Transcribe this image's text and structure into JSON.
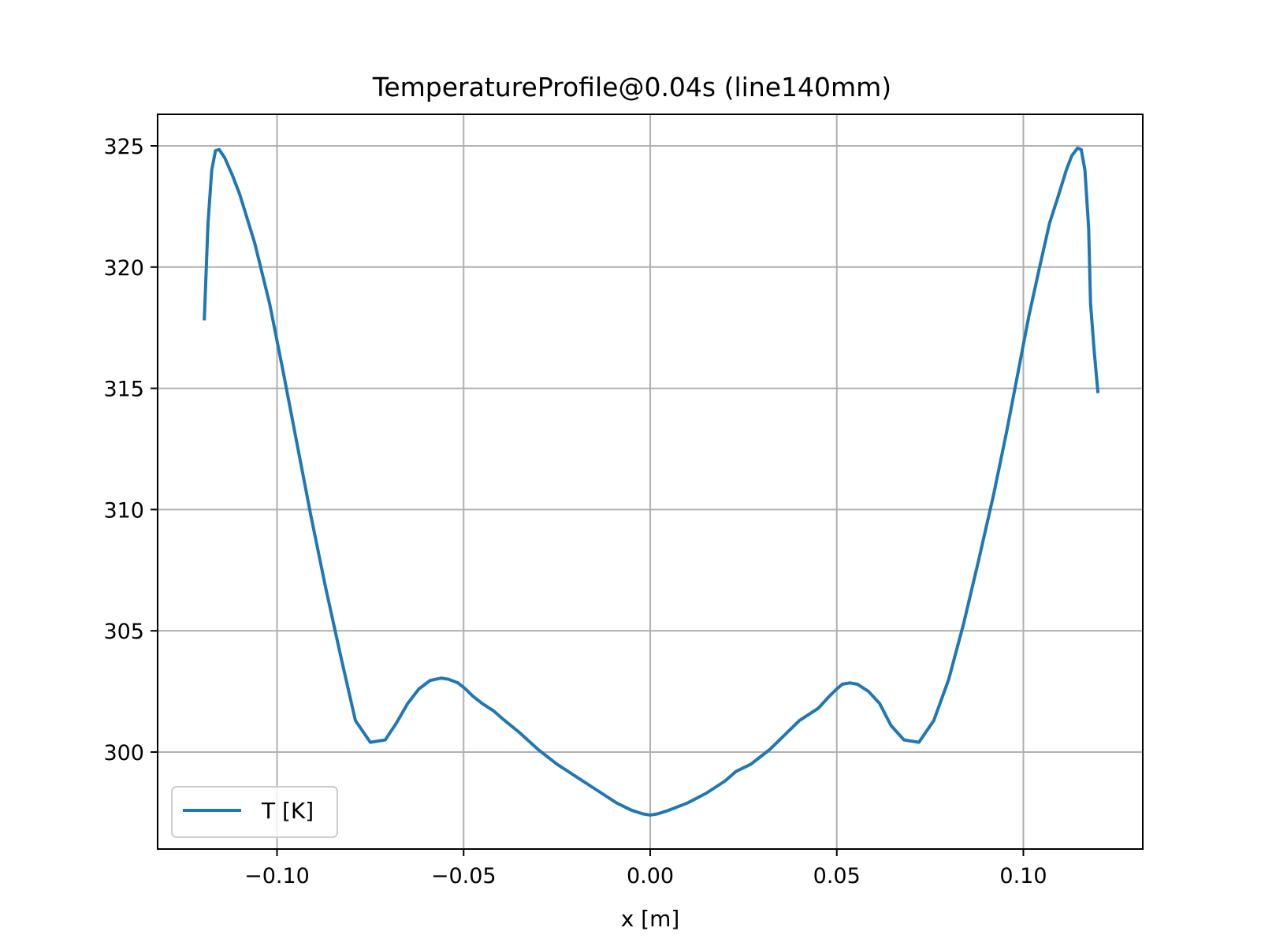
{
  "chart_data": {
    "type": "line",
    "title": "TemperatureProfile@0.04s (line140mm)",
    "xlabel": "x [m]",
    "ylabel": "",
    "xlim": [
      -0.132,
      0.132
    ],
    "ylim": [
      296.0,
      326.3
    ],
    "xticks": [
      -0.1,
      -0.05,
      0.0,
      0.05,
      0.1
    ],
    "xtick_labels": [
      "−0.10",
      "−0.05",
      "0.00",
      "0.05",
      "0.10"
    ],
    "yticks": [
      300,
      305,
      310,
      315,
      320,
      325
    ],
    "ytick_labels": [
      "300",
      "305",
      "310",
      "315",
      "320",
      "325"
    ],
    "grid": true,
    "legend_position": "lower-left",
    "series": [
      {
        "name": "T [K]",
        "color": "#1f77b4",
        "x": [
          -0.1195,
          -0.1185,
          -0.1175,
          -0.1165,
          -0.1155,
          -0.114,
          -0.112,
          -0.11,
          -0.106,
          -0.102,
          -0.0985,
          -0.095,
          -0.091,
          -0.087,
          -0.083,
          -0.079,
          -0.075,
          -0.071,
          -0.068,
          -0.065,
          -0.062,
          -0.059,
          -0.056,
          -0.054,
          -0.0515,
          -0.0495,
          -0.0475,
          -0.045,
          -0.042,
          -0.039,
          -0.035,
          -0.03,
          -0.025,
          -0.022,
          -0.018,
          -0.013,
          -0.009,
          -0.005,
          -0.002,
          0.0,
          0.002,
          0.005,
          0.01,
          0.015,
          0.02,
          0.023,
          0.027,
          0.032,
          0.036,
          0.04,
          0.042,
          0.045,
          0.048,
          0.05,
          0.0515,
          0.0535,
          0.0555,
          0.0585,
          0.0615,
          0.0645,
          0.068,
          0.072,
          0.076,
          0.08,
          0.084,
          0.088,
          0.092,
          0.0955,
          0.0985,
          0.1015,
          0.1045,
          0.107,
          0.1095,
          0.1115,
          0.113,
          0.1145,
          0.1155,
          0.1165,
          0.1175,
          0.118,
          0.119,
          0.12
        ],
        "y": [
          317.8,
          321.8,
          324.0,
          324.8,
          324.85,
          324.5,
          323.8,
          323.0,
          321.0,
          318.5,
          315.8,
          313.0,
          309.8,
          306.8,
          304.0,
          301.3,
          300.4,
          300.5,
          301.2,
          302.0,
          302.6,
          302.95,
          303.05,
          303.0,
          302.85,
          302.6,
          302.3,
          302.0,
          301.7,
          301.3,
          300.8,
          300.1,
          299.5,
          299.2,
          298.8,
          298.3,
          297.9,
          297.6,
          297.45,
          297.4,
          297.45,
          297.6,
          297.9,
          298.3,
          298.8,
          299.2,
          299.5,
          300.1,
          300.7,
          301.3,
          301.5,
          301.8,
          302.3,
          302.6,
          302.8,
          302.85,
          302.8,
          302.5,
          302.0,
          301.1,
          300.5,
          300.4,
          301.3,
          303.0,
          305.3,
          307.9,
          310.6,
          313.2,
          315.6,
          318.0,
          320.1,
          321.8,
          323.0,
          324.0,
          324.6,
          324.9,
          324.85,
          324.0,
          321.6,
          318.5,
          316.5,
          314.8
        ]
      }
    ]
  }
}
